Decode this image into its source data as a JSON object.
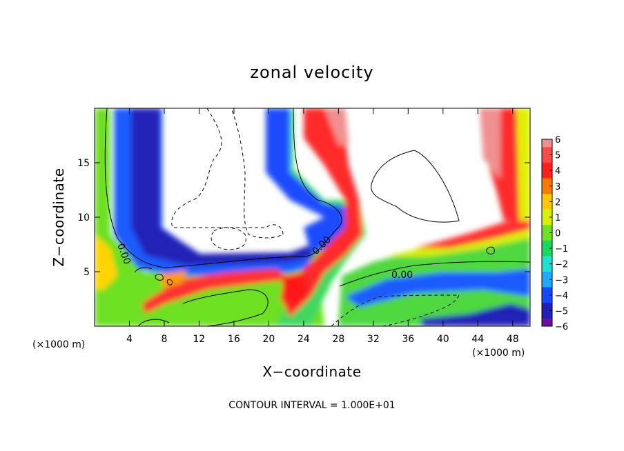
{
  "chart_data": {
    "type": "heatmap",
    "title": "zonal velocity",
    "xlabel": "X−coordinate",
    "ylabel": "Z−coordinate",
    "x_unit_note": "(×1000 m)",
    "z_unit_note": "(×1000 m)",
    "xlim": [
      0,
      50
    ],
    "ylim": [
      0,
      20
    ],
    "x_ticks": [
      4,
      8,
      12,
      16,
      20,
      24,
      28,
      32,
      36,
      40,
      44,
      48
    ],
    "x_tick_labels": [
      "4",
      "8",
      "12",
      "16",
      "20",
      "24",
      "28",
      "32",
      "36",
      "40",
      "44",
      "48"
    ],
    "y_ticks": [
      5,
      10,
      15
    ],
    "y_tick_labels": [
      "5",
      "10",
      "15"
    ],
    "colorbar": {
      "values": [
        6,
        5,
        4,
        3,
        2,
        1,
        0,
        -1,
        -2,
        -3,
        -4,
        -5,
        -6
      ],
      "labels": [
        "6",
        "5",
        "4",
        "3",
        "2",
        "1",
        "0",
        "−1",
        "−2",
        "−3",
        "−4",
        "−5",
        "−6"
      ],
      "colors": [
        "#ef8f8f",
        "#ff4a4a",
        "#ff2020",
        "#ff7a00",
        "#ffc800",
        "#d8f000",
        "#70e020",
        "#18d860",
        "#20e0d0",
        "#20a8ff",
        "#1848ff",
        "#2020b8",
        "#6a10a0"
      ]
    },
    "contour_labels": [
      "0.00",
      "0.00",
      "0.00"
    ],
    "footnote": "CONTOUR INTERVAL = 1.000E+01",
    "grid": false
  }
}
